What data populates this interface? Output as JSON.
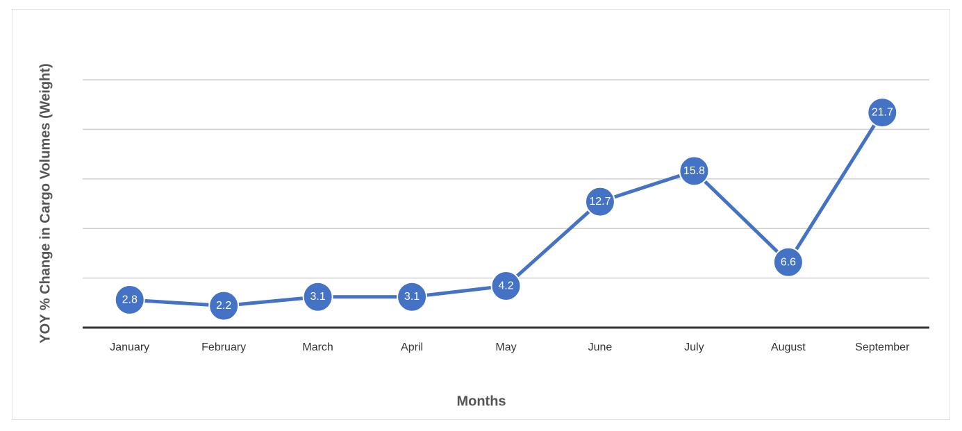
{
  "chart_data": {
    "type": "line",
    "categories": [
      "January",
      "February",
      "March",
      "April",
      "May",
      "June",
      "July",
      "August",
      "September"
    ],
    "series": [
      {
        "values": [
          2.8,
          2.2,
          3.1,
          3.1,
          4.2,
          12.7,
          15.8,
          6.6,
          21.7
        ],
        "color": "#4472c4"
      }
    ],
    "data_labels": [
      "2.8",
      "2.2",
      "3.1",
      "3.1",
      "4.2",
      "12.7",
      "15.8",
      "6.6",
      "21.7"
    ],
    "xlabel": "Months",
    "ylabel": "YOY % Change in Cargo Volumes (Weight)",
    "ylim": [
      0,
      25
    ],
    "grid": true,
    "legend": "none"
  }
}
